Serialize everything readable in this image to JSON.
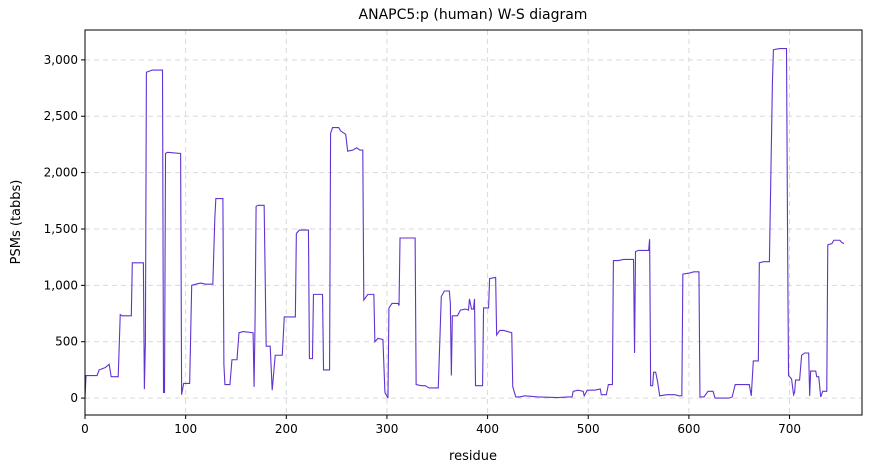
{
  "chart_data": {
    "type": "line",
    "title": "ANAPC5:p (human) W-S diagram",
    "xlabel": "residue",
    "ylabel": "PSMs (tabbs)",
    "xlim": [
      0,
      772
    ],
    "ylim": [
      -150,
      3265
    ],
    "xticks": [
      0,
      100,
      200,
      300,
      400,
      500,
      600,
      700
    ],
    "yticks": [
      0,
      500,
      {
        "value": 1000,
        "label": "1,000"
      },
      {
        "value": 1500,
        "label": "1,500"
      },
      {
        "value": 2000,
        "label": "2,000"
      },
      {
        "value": 2500,
        "label": "2,500"
      },
      {
        "value": 3000,
        "label": "3,000"
      }
    ],
    "grid": true,
    "series": [
      {
        "name": "ANAPC5:p",
        "color": "#6133d1",
        "x": [
          0,
          1,
          10,
          12,
          14,
          20,
          24,
          26,
          33,
          35,
          37,
          46,
          47,
          58,
          59,
          60,
          61,
          64,
          67,
          77,
          78,
          79,
          80,
          82,
          95,
          96,
          98,
          104,
          106,
          110,
          115,
          120,
          127,
          129,
          130,
          137,
          138,
          139,
          144,
          146,
          151,
          153,
          157,
          167,
          168,
          169,
          170,
          172,
          178,
          180,
          184,
          186,
          189,
          196,
          198,
          209,
          210,
          213,
          222,
          223,
          226,
          227,
          236,
          237,
          243,
          244,
          246,
          252,
          254,
          259,
          261,
          266,
          270,
          273,
          276,
          277,
          281,
          287,
          288,
          291,
          296,
          298,
          301,
          302,
          305,
          311,
          312,
          313,
          322,
          328,
          329,
          334,
          338,
          342,
          351,
          354,
          357,
          362,
          363,
          364,
          365,
          370,
          373,
          378,
          381,
          382,
          384,
          386,
          387,
          388,
          390,
          395,
          396,
          401,
          402,
          408,
          409,
          412,
          416,
          420,
          424,
          425,
          428,
          432,
          437,
          450,
          470,
          480,
          484,
          485,
          490,
          495,
          496,
          499,
          506,
          512,
          513,
          518,
          520,
          524,
          525,
          530,
          535,
          545,
          546,
          547,
          550,
          560,
          561,
          562,
          564,
          565,
          567,
          569,
          571,
          578,
          586,
          590,
          593,
          594,
          601,
          605,
          610,
          611,
          615,
          619,
          624,
          626,
          640,
          643,
          646,
          660,
          662,
          664,
          669,
          670,
          674,
          680,
          683,
          684,
          690,
          697,
          698,
          699,
          702,
          704,
          705,
          706,
          710,
          712,
          715,
          719,
          720,
          721,
          726,
          727,
          729,
          731,
          733,
          737,
          738,
          742,
          744,
          750,
          752,
          754
        ],
        "values": [
          0,
          200,
          200,
          200,
          250,
          270,
          300,
          190,
          190,
          740,
          730,
          730,
          1200,
          1200,
          80,
          500,
          2890,
          2900,
          2910,
          2910,
          50,
          50,
          2170,
          2180,
          2170,
          30,
          130,
          130,
          1000,
          1010,
          1020,
          1010,
          1010,
          1600,
          1770,
          1770,
          300,
          120,
          120,
          340,
          340,
          580,
          590,
          580,
          100,
          700,
          1700,
          1710,
          1710,
          460,
          460,
          70,
          380,
          380,
          720,
          720,
          1460,
          1490,
          1490,
          350,
          350,
          920,
          920,
          250,
          250,
          2350,
          2400,
          2400,
          2370,
          2340,
          2190,
          2200,
          2220,
          2200,
          2200,
          870,
          920,
          920,
          500,
          530,
          520,
          50,
          0,
          800,
          840,
          840,
          820,
          1420,
          1420,
          1420,
          120,
          110,
          110,
          90,
          90,
          900,
          950,
          950,
          840,
          200,
          730,
          730,
          780,
          790,
          780,
          880,
          790,
          790,
          880,
          110,
          110,
          110,
          800,
          800,
          1060,
          1070,
          560,
          600,
          600,
          590,
          580,
          100,
          10,
          10,
          20,
          10,
          5,
          10,
          10,
          60,
          70,
          60,
          20,
          70,
          70,
          80,
          30,
          30,
          120,
          120,
          1220,
          1220,
          1230,
          1230,
          400,
          1300,
          1310,
          1310,
          1410,
          110,
          110,
          230,
          230,
          140,
          20,
          30,
          30,
          20,
          20,
          1100,
          1110,
          1120,
          1120,
          10,
          10,
          60,
          60,
          0,
          0,
          10,
          120,
          120,
          20,
          330,
          330,
          1200,
          1210,
          1210,
          2800,
          3090,
          3100,
          3100,
          1500,
          200,
          170,
          30,
          50,
          160,
          160,
          380,
          400,
          400,
          20,
          240,
          240,
          190,
          190,
          10,
          60,
          60,
          1360,
          1370,
          1400,
          1400,
          1380,
          1370
        ]
      }
    ]
  }
}
